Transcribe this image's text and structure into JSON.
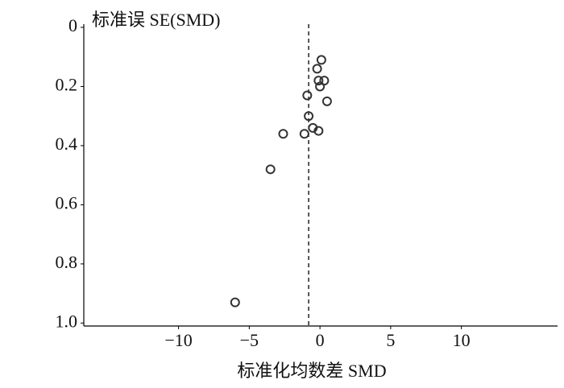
{
  "chart_data": {
    "type": "scatter",
    "ylabel": "标准误  SE(SMD)",
    "xlabel": "标准化均数差  SMD",
    "x": [
      0.1,
      -0.2,
      0.3,
      -0.1,
      0.0,
      -0.9,
      0.5,
      -0.8,
      -0.5,
      -0.1,
      -1.1,
      -2.6,
      -3.5,
      -6.0
    ],
    "values": [
      0.11,
      0.14,
      0.18,
      0.18,
      0.2,
      0.23,
      0.25,
      0.3,
      0.34,
      0.35,
      0.36,
      0.36,
      0.48,
      0.93
    ],
    "color": "#333333",
    "ref_line": -0.8,
    "xlim": [
      -16.7,
      16.8
    ],
    "ylim": [
      0,
      1.01
    ],
    "y_inverted": true,
    "xticks": [
      {
        "value": -10,
        "label": "−10"
      },
      {
        "value": -5,
        "label": "−5"
      },
      0,
      5,
      10
    ],
    "yticks": [
      0,
      0.2,
      0.4,
      0.6,
      0.8,
      {
        "value": 1,
        "label": "1.0"
      }
    ]
  }
}
